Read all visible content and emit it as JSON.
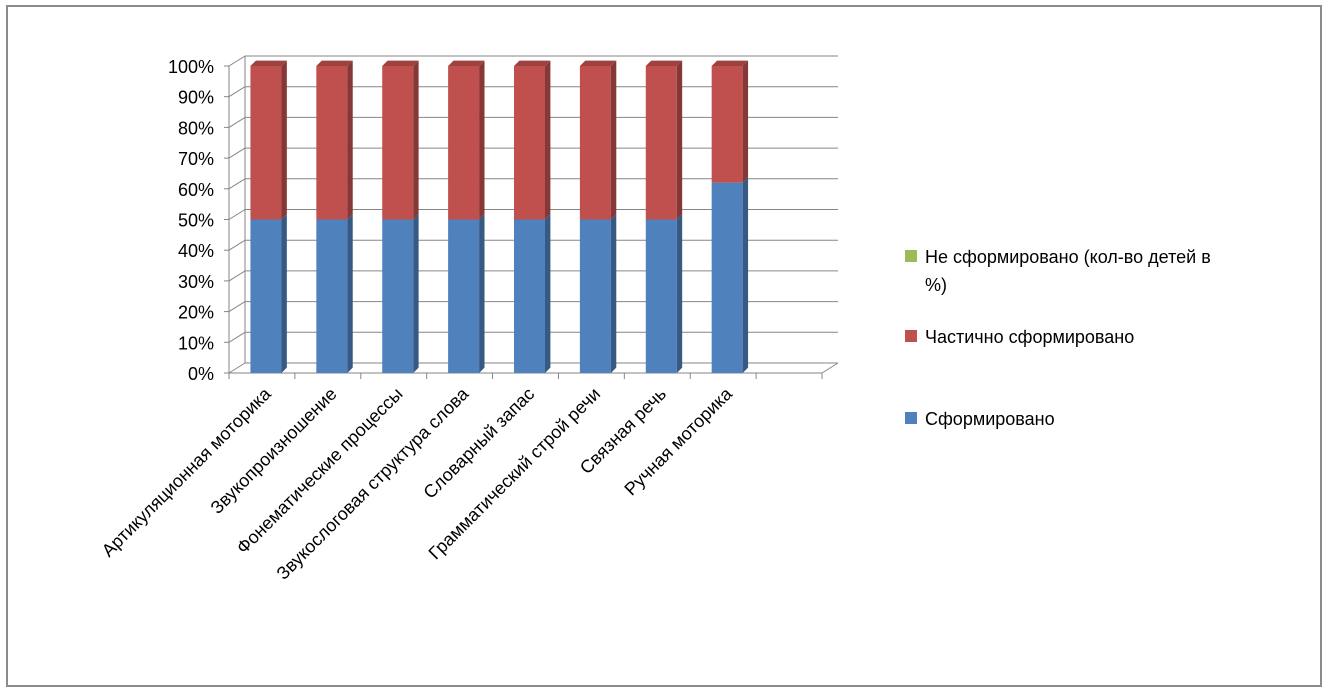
{
  "chart_data": {
    "type": "bar",
    "stacked": true,
    "percent_stacked": true,
    "three_d": true,
    "categories": [
      "Артикуляционная моторика",
      "Звукопроизношение",
      "Фонематические процессы",
      "Звукослоговая структура слова",
      "Словарный запас",
      "Грамматический строй речи",
      "Связная речь",
      "Ручная моторика",
      ""
    ],
    "series": [
      {
        "name": "Сформировано",
        "color": "#4f81bd",
        "values": [
          50,
          50,
          50,
          50,
          50,
          50,
          50,
          62,
          0
        ]
      },
      {
        "name": "Частично сформировано",
        "color": "#c0504d",
        "values": [
          50,
          50,
          50,
          50,
          50,
          50,
          50,
          38,
          0
        ]
      },
      {
        "name": "Не сформировано (кол-во детей в %)",
        "color": "#9bbb59",
        "values": [
          0,
          0,
          0,
          0,
          0,
          0,
          0,
          0,
          0
        ]
      }
    ],
    "y_ticks": [
      "0%",
      "10%",
      "20%",
      "30%",
      "40%",
      "50%",
      "60%",
      "70%",
      "80%",
      "90%",
      "100%"
    ],
    "ylim": [
      0,
      100
    ],
    "grid": true,
    "legend_position": "right",
    "legend_order": [
      "Не сформировано (кол-во детей в %)",
      "Частично сформировано",
      "Сформировано"
    ],
    "legend_lines": {
      "Не сформировано (кол-во детей в %)": [
        "Не сформировано (кол-во детей в",
        "%)"
      ]
    }
  }
}
